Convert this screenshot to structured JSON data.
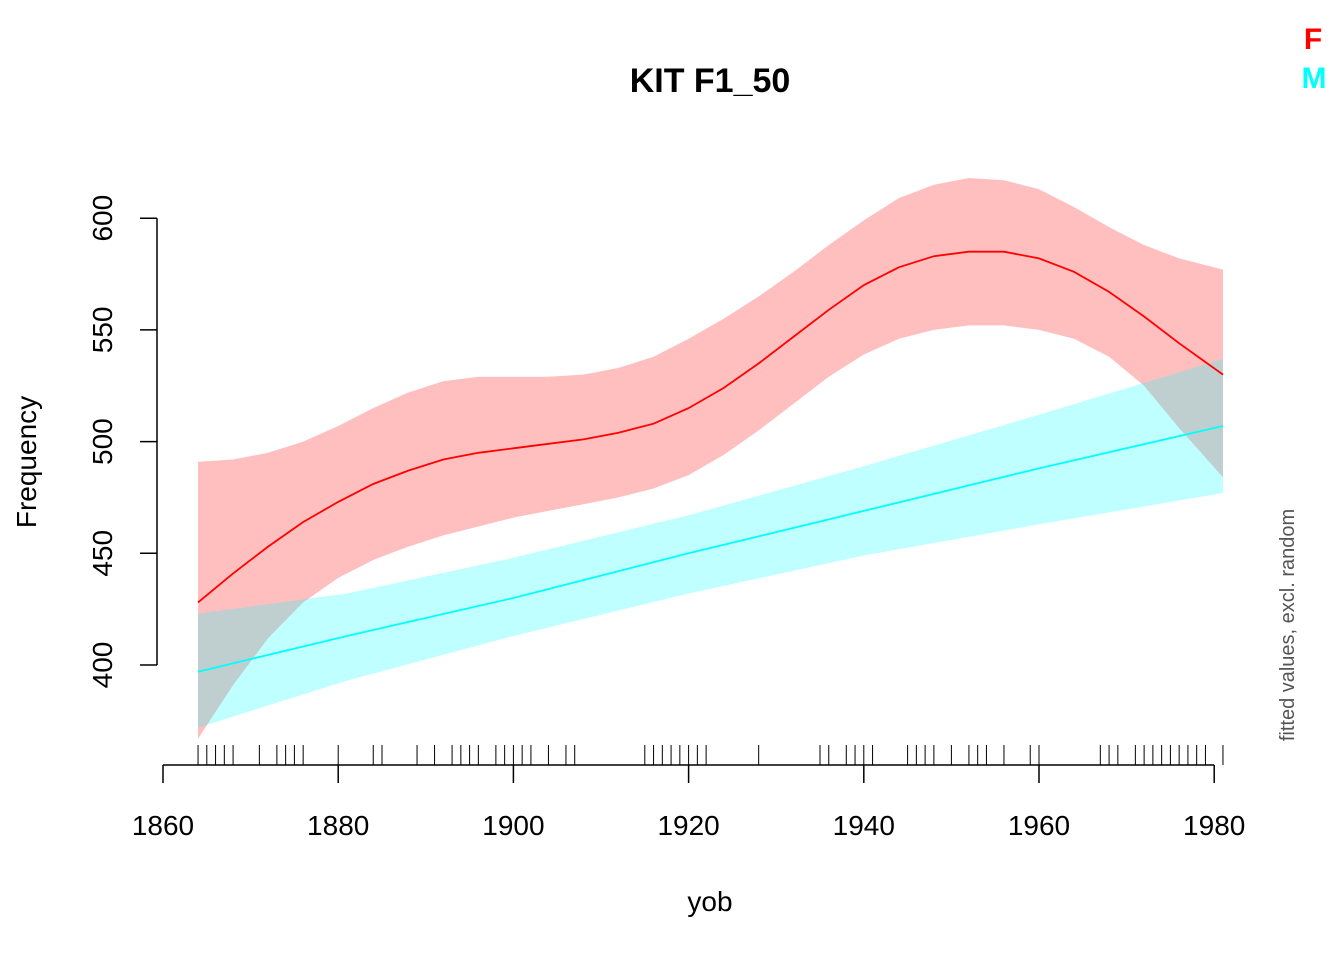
{
  "chart_data": {
    "type": "line",
    "title": "KIT F1_50",
    "xlabel": "yob",
    "ylabel": "Frequency",
    "side_note": "fitted values, excl. random",
    "xlim": [
      1864,
      1981
    ],
    "ylim": [
      366,
      618
    ],
    "x_ticks": [
      "1860",
      "1880",
      "1900",
      "1920",
      "1940",
      "1960",
      "1980"
    ],
    "x_tick_values": [
      1860,
      1880,
      1900,
      1920,
      1940,
      1960,
      1980
    ],
    "y_ticks": [
      "400",
      "450",
      "500",
      "550",
      "600"
    ],
    "y_tick_values": [
      400,
      450,
      500,
      550,
      600
    ],
    "grid": false,
    "legend_position": "top-right",
    "legend": [
      {
        "label": "F",
        "color": "#ff0000"
      },
      {
        "label": "M",
        "color": "#00ffff"
      }
    ],
    "rug": [
      1864,
      1865,
      1866,
      1867,
      1868,
      1871,
      1873,
      1874,
      1875,
      1876,
      1880,
      1884,
      1885,
      1889,
      1891,
      1893,
      1894,
      1895,
      1896,
      1898,
      1899,
      1900,
      1901,
      1902,
      1904,
      1906,
      1907,
      1915,
      1916,
      1917,
      1918,
      1919,
      1920,
      1921,
      1922,
      1928,
      1935,
      1936,
      1938,
      1939,
      1940,
      1941,
      1945,
      1946,
      1947,
      1948,
      1950,
      1952,
      1953,
      1954,
      1956,
      1959,
      1960,
      1967,
      1968,
      1969,
      1971,
      1972,
      1973,
      1974,
      1975,
      1976,
      1977,
      1978,
      1979,
      1981
    ],
    "series": [
      {
        "name": "F",
        "color": "#ff0000",
        "band_color": "#ffbfbf",
        "x": [
          1864,
          1868,
          1872,
          1876,
          1880,
          1884,
          1888,
          1892,
          1896,
          1900,
          1904,
          1908,
          1912,
          1916,
          1920,
          1924,
          1928,
          1932,
          1936,
          1940,
          1944,
          1948,
          1952,
          1956,
          1960,
          1964,
          1968,
          1972,
          1976,
          1981
        ],
        "y": [
          428,
          441,
          453,
          464,
          473,
          481,
          487,
          492,
          495,
          497,
          499,
          501,
          504,
          508,
          515,
          524,
          535,
          547,
          559,
          570,
          578,
          583,
          585,
          585,
          582,
          576,
          567,
          556,
          544,
          530
        ],
        "lower": [
          367,
          391,
          412,
          428,
          439,
          447,
          453,
          458,
          462,
          466,
          469,
          472,
          475,
          479,
          485,
          494,
          505,
          517,
          529,
          539,
          546,
          550,
          552,
          552,
          550,
          546,
          538,
          525,
          506,
          484
        ],
        "upper": [
          491,
          492,
          495,
          500,
          507,
          515,
          522,
          527,
          529,
          529,
          529,
          530,
          533,
          538,
          546,
          555,
          565,
          576,
          588,
          599,
          609,
          615,
          618,
          617,
          613,
          605,
          596,
          588,
          582,
          577
        ]
      },
      {
        "name": "M",
        "color": "#00ffff",
        "band_color": "#c6ffff",
        "x": [
          1864,
          1881,
          1900,
          1920,
          1940,
          1960,
          1981
        ],
        "y": [
          397,
          413,
          430,
          450,
          469,
          488,
          507
        ],
        "lower": [
          372,
          393,
          413,
          432,
          449,
          463,
          477
        ],
        "upper": [
          423,
          432,
          448,
          467,
          489,
          512,
          537
        ]
      }
    ]
  }
}
